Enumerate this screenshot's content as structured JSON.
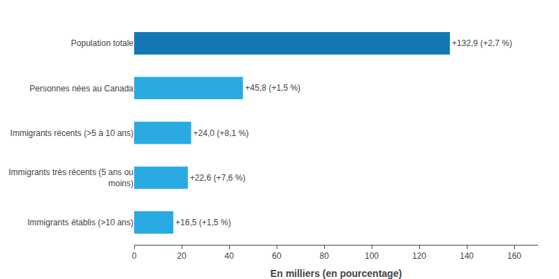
{
  "chart_data": {
    "type": "bar",
    "orientation": "horizontal",
    "categories": [
      "Immigrants établis (>10 ans)",
      "Immigrants très récents (5 ans ou\nmoins)",
      "Immigrants récents (>5 à 10 ans)",
      "Personnes nées au Canada",
      "Population totale"
    ],
    "values": [
      16.5,
      22.6,
      24.0,
      45.8,
      132.9
    ],
    "value_labels": [
      "+16,5 (+1,5 %)",
      "+22,6 (+7,6 %)",
      "+24,0 (+8,1 %)",
      "+45,8 (+1,5 %)",
      "+132,9 (+2,7 %)"
    ],
    "data_labels": true,
    "colors": [
      "#29abe2",
      "#29abe2",
      "#29abe2",
      "#29abe2",
      "#1278b4"
    ],
    "xlabel": "En milliers (en pourcentage)",
    "xlim": [
      0,
      170
    ],
    "xticks": [
      0,
      20,
      40,
      60,
      80,
      100,
      120,
      140,
      160
    ],
    "grid": false
  }
}
